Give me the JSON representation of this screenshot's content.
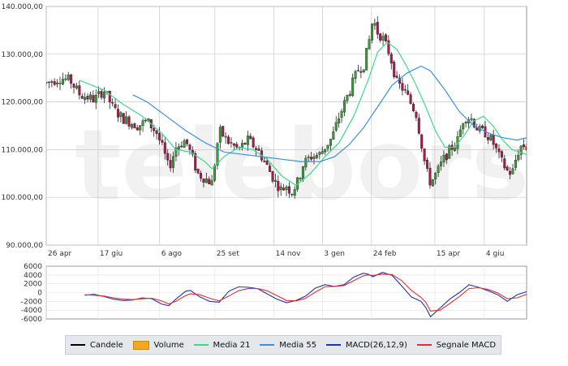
{
  "watermark": "teleborsa",
  "colors": {
    "up": "#3a9d3a",
    "down": "#b0174f",
    "wick": "#222222",
    "ma21": "#3fd88a",
    "ma55": "#3b8fe0",
    "macd": "#2233aa",
    "signal": "#e03030",
    "volume": "#f5a623",
    "grid": "#c8c8c8"
  },
  "legend": [
    {
      "label": "Candele",
      "color": "#000000",
      "kind": "line"
    },
    {
      "label": "Volume",
      "color": "#f5a623",
      "kind": "box"
    },
    {
      "label": "Media 21",
      "color": "#3fd88a",
      "kind": "line"
    },
    {
      "label": "Media 55",
      "color": "#3b8fe0",
      "kind": "line"
    },
    {
      "label": "MACD(26,12,9)",
      "color": "#2233aa",
      "kind": "line"
    },
    {
      "label": "Segnale MACD",
      "color": "#e03030",
      "kind": "line"
    }
  ],
  "chart_data": [
    {
      "type": "candlestick",
      "title": "",
      "xlabel": "",
      "ylabel": "",
      "ylim": [
        90000,
        140000
      ],
      "yticks": [
        "90.000,00",
        "100.000,00",
        "110.000,00",
        "120.000,00",
        "130.000,00",
        "140.000,00"
      ],
      "ytick_values": [
        90000,
        100000,
        110000,
        120000,
        130000,
        140000
      ],
      "xticks": [
        "26 apr",
        "17 giu",
        "6 ago",
        "25 set",
        "14 nov",
        "3 gen",
        "24 feb",
        "15 apr",
        "4 giu"
      ],
      "xtick_positions": [
        0,
        0.108,
        0.236,
        0.351,
        0.474,
        0.575,
        0.677,
        0.809,
        0.912
      ],
      "grid": true,
      "anchors": [
        [
          0.0,
          124000
        ],
        [
          0.03,
          125000
        ],
        [
          0.05,
          124500
        ],
        [
          0.07,
          121500
        ],
        [
          0.1,
          120500
        ],
        [
          0.12,
          122500
        ],
        [
          0.14,
          118500
        ],
        [
          0.16,
          116500
        ],
        [
          0.19,
          115000
        ],
        [
          0.21,
          116000
        ],
        [
          0.23,
          113500
        ],
        [
          0.245,
          109500
        ],
        [
          0.255,
          106000
        ],
        [
          0.27,
          110500
        ],
        [
          0.29,
          112000
        ],
        [
          0.305,
          108000
        ],
        [
          0.315,
          105000
        ],
        [
          0.33,
          104000
        ],
        [
          0.345,
          103000
        ],
        [
          0.36,
          114000
        ],
        [
          0.38,
          111500
        ],
        [
          0.4,
          110000
        ],
        [
          0.42,
          112000
        ],
        [
          0.44,
          110000
        ],
        [
          0.46,
          106500
        ],
        [
          0.475,
          103500
        ],
        [
          0.49,
          101500
        ],
        [
          0.5,
          102500
        ],
        [
          0.51,
          101000
        ],
        [
          0.525,
          103500
        ],
        [
          0.535,
          107000
        ],
        [
          0.55,
          108500
        ],
        [
          0.57,
          109000
        ],
        [
          0.58,
          110500
        ],
        [
          0.595,
          112500
        ],
        [
          0.61,
          117000
        ],
        [
          0.63,
          122000
        ],
        [
          0.65,
          127000
        ],
        [
          0.66,
          127500
        ],
        [
          0.67,
          131500
        ],
        [
          0.68,
          137500
        ],
        [
          0.69,
          134500
        ],
        [
          0.7,
          133500
        ],
        [
          0.715,
          130000
        ],
        [
          0.73,
          124000
        ],
        [
          0.745,
          122500
        ],
        [
          0.76,
          119500
        ],
        [
          0.77,
          117500
        ],
        [
          0.78,
          112000
        ],
        [
          0.79,
          106000
        ],
        [
          0.8,
          103000
        ],
        [
          0.815,
          105500
        ],
        [
          0.83,
          108500
        ],
        [
          0.845,
          110500
        ],
        [
          0.855,
          111500
        ],
        [
          0.87,
          117000
        ],
        [
          0.885,
          116500
        ],
        [
          0.9,
          114000
        ],
        [
          0.915,
          113500
        ],
        [
          0.93,
          111500
        ],
        [
          0.945,
          108000
        ],
        [
          0.96,
          105500
        ],
        [
          0.97,
          105000
        ],
        [
          0.98,
          109000
        ],
        [
          0.99,
          111000
        ],
        [
          1.0,
          110500
        ]
      ],
      "series": [
        {
          "name": "Media 21",
          "points": [
            [
              0.07,
              124500
            ],
            [
              0.12,
              122500
            ],
            [
              0.16,
              119500
            ],
            [
              0.2,
              117000
            ],
            [
              0.24,
              113500
            ],
            [
              0.27,
              110000
            ],
            [
              0.3,
              109500
            ],
            [
              0.33,
              107500
            ],
            [
              0.345,
              106000
            ],
            [
              0.37,
              108500
            ],
            [
              0.4,
              110500
            ],
            [
              0.43,
              110000
            ],
            [
              0.46,
              108000
            ],
            [
              0.49,
              104500
            ],
            [
              0.52,
              102500
            ],
            [
              0.55,
              105000
            ],
            [
              0.58,
              108500
            ],
            [
              0.61,
              111500
            ],
            [
              0.64,
              117000
            ],
            [
              0.67,
              124500
            ],
            [
              0.69,
              130500
            ],
            [
              0.71,
              132500
            ],
            [
              0.73,
              131000
            ],
            [
              0.75,
              127500
            ],
            [
              0.77,
              123500
            ],
            [
              0.79,
              119000
            ],
            [
              0.81,
              114000
            ],
            [
              0.83,
              110500
            ],
            [
              0.85,
              110500
            ],
            [
              0.87,
              113000
            ],
            [
              0.89,
              116000
            ],
            [
              0.91,
              117000
            ],
            [
              0.93,
              115000
            ],
            [
              0.95,
              112000
            ],
            [
              0.97,
              110000
            ],
            [
              1.0,
              109000
            ]
          ]
        },
        {
          "name": "Media 55",
          "points": [
            [
              0.18,
              121500
            ],
            [
              0.21,
              120000
            ],
            [
              0.25,
              117000
            ],
            [
              0.29,
              114000
            ],
            [
              0.33,
              111500
            ],
            [
              0.37,
              109500
            ],
            [
              0.41,
              109000
            ],
            [
              0.45,
              108500
            ],
            [
              0.49,
              108000
            ],
            [
              0.53,
              107500
            ],
            [
              0.57,
              107500
            ],
            [
              0.6,
              108500
            ],
            [
              0.63,
              111000
            ],
            [
              0.66,
              114500
            ],
            [
              0.69,
              119000
            ],
            [
              0.72,
              123500
            ],
            [
              0.75,
              126000
            ],
            [
              0.78,
              127500
            ],
            [
              0.8,
              126500
            ],
            [
              0.83,
              122500
            ],
            [
              0.86,
              118000
            ],
            [
              0.89,
              115000
            ],
            [
              0.92,
              113500
            ],
            [
              0.95,
              112500
            ],
            [
              0.98,
              112000
            ],
            [
              1.0,
              112500
            ]
          ]
        }
      ]
    },
    {
      "type": "line",
      "title": "",
      "xlabel": "",
      "ylabel": "",
      "ylim": [
        -6000,
        6000
      ],
      "yticks": [
        "6000",
        "4000",
        "2000",
        "0",
        "-2000",
        "-4000",
        "-6000"
      ],
      "ytick_values": [
        6000,
        4000,
        2000,
        0,
        -2000,
        -4000,
        -6000
      ],
      "grid": true,
      "series": [
        {
          "name": "MACD(26,12,9)",
          "points": [
            [
              0.08,
              -600
            ],
            [
              0.1,
              -400
            ],
            [
              0.12,
              -900
            ],
            [
              0.14,
              -1500
            ],
            [
              0.16,
              -1800
            ],
            [
              0.18,
              -1700
            ],
            [
              0.2,
              -1200
            ],
            [
              0.22,
              -1400
            ],
            [
              0.24,
              -2600
            ],
            [
              0.255,
              -3000
            ],
            [
              0.27,
              -1500
            ],
            [
              0.29,
              300
            ],
            [
              0.3,
              500
            ],
            [
              0.32,
              -1000
            ],
            [
              0.34,
              -2000
            ],
            [
              0.36,
              -2200
            ],
            [
              0.38,
              300
            ],
            [
              0.4,
              1300
            ],
            [
              0.42,
              1200
            ],
            [
              0.44,
              900
            ],
            [
              0.46,
              -300
            ],
            [
              0.48,
              -1500
            ],
            [
              0.5,
              -2300
            ],
            [
              0.52,
              -1800
            ],
            [
              0.54,
              -800
            ],
            [
              0.56,
              1000
            ],
            [
              0.58,
              1800
            ],
            [
              0.6,
              1400
            ],
            [
              0.62,
              1800
            ],
            [
              0.64,
              3500
            ],
            [
              0.66,
              4400
            ],
            [
              0.67,
              4200
            ],
            [
              0.68,
              3600
            ],
            [
              0.7,
              4600
            ],
            [
              0.72,
              3900
            ],
            [
              0.74,
              1500
            ],
            [
              0.76,
              -1000
            ],
            [
              0.78,
              -2000
            ],
            [
              0.79,
              -3400
            ],
            [
              0.8,
              -5500
            ],
            [
              0.82,
              -3500
            ],
            [
              0.84,
              -1500
            ],
            [
              0.86,
              0
            ],
            [
              0.88,
              1800
            ],
            [
              0.9,
              1200
            ],
            [
              0.92,
              400
            ],
            [
              0.94,
              -500
            ],
            [
              0.96,
              -2000
            ],
            [
              0.98,
              -500
            ],
            [
              1.0,
              200
            ]
          ]
        },
        {
          "name": "Segnale MACD",
          "points": [
            [
              0.08,
              -500
            ],
            [
              0.1,
              -600
            ],
            [
              0.12,
              -800
            ],
            [
              0.14,
              -1200
            ],
            [
              0.16,
              -1500
            ],
            [
              0.18,
              -1600
            ],
            [
              0.2,
              -1400
            ],
            [
              0.22,
              -1300
            ],
            [
              0.24,
              -1900
            ],
            [
              0.255,
              -2600
            ],
            [
              0.27,
              -2000
            ],
            [
              0.29,
              -700
            ],
            [
              0.3,
              -300
            ],
            [
              0.32,
              -500
            ],
            [
              0.34,
              -1300
            ],
            [
              0.36,
              -1900
            ],
            [
              0.38,
              -800
            ],
            [
              0.4,
              400
            ],
            [
              0.42,
              900
            ],
            [
              0.44,
              900
            ],
            [
              0.46,
              400
            ],
            [
              0.48,
              -700
            ],
            [
              0.5,
              -1800
            ],
            [
              0.52,
              -1900
            ],
            [
              0.54,
              -1300
            ],
            [
              0.56,
              100
            ],
            [
              0.58,
              1300
            ],
            [
              0.6,
              1400
            ],
            [
              0.62,
              1600
            ],
            [
              0.64,
              2700
            ],
            [
              0.66,
              3800
            ],
            [
              0.67,
              4000
            ],
            [
              0.68,
              3900
            ],
            [
              0.7,
              4200
            ],
            [
              0.72,
              4100
            ],
            [
              0.74,
              2700
            ],
            [
              0.76,
              500
            ],
            [
              0.78,
              -1100
            ],
            [
              0.79,
              -2200
            ],
            [
              0.8,
              -4200
            ],
            [
              0.82,
              -4000
            ],
            [
              0.84,
              -2500
            ],
            [
              0.86,
              -900
            ],
            [
              0.88,
              900
            ],
            [
              0.9,
              1100
            ],
            [
              0.92,
              700
            ],
            [
              0.94,
              -100
            ],
            [
              0.96,
              -1400
            ],
            [
              0.98,
              -1200
            ],
            [
              1.0,
              -400
            ]
          ]
        }
      ]
    }
  ]
}
